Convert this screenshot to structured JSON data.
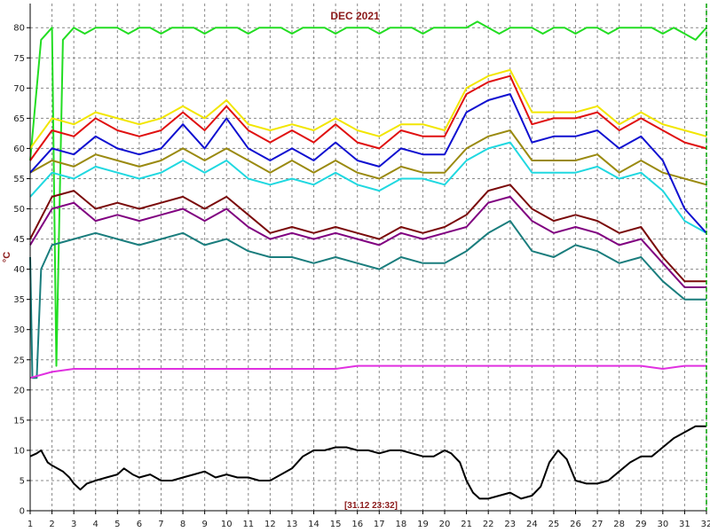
{
  "chart_data": {
    "type": "line",
    "title": "DEC 2021",
    "ylabel": "°C",
    "xlabel": "",
    "timestamp": "[31.12 23:32]",
    "x_ticks": [
      "1",
      "2",
      "3",
      "4",
      "5",
      "6",
      "7",
      "8",
      "9",
      "10",
      "11",
      "12",
      "13",
      "14",
      "15",
      "16",
      "17",
      "18",
      "19",
      "20",
      "21",
      "22",
      "23",
      "24",
      "25",
      "26",
      "27",
      "28",
      "29",
      "30",
      "31",
      "32"
    ],
    "y_ticks": [
      "0",
      "5",
      "10",
      "15",
      "20",
      "25",
      "30",
      "35",
      "40",
      "45",
      "50",
      "55",
      "60",
      "65",
      "70",
      "75",
      "80"
    ],
    "xlim": [
      1,
      32
    ],
    "ylim": [
      0,
      84
    ],
    "grid": true,
    "colors": {
      "green": "#22dd22",
      "yellow": "#f2e600",
      "red": "#e01010",
      "olive": "#9a8a10",
      "cyan": "#20d8e0",
      "blue": "#1010d0",
      "maroon": "#7a0a0a",
      "purple": "#800080",
      "teal": "#1a7d7d",
      "magenta": "#e030e0",
      "black": "#000000",
      "marker": "#00a000"
    },
    "series": [
      {
        "color": "green",
        "x": [
          1,
          1.5,
          2,
          2.2,
          2.5,
          3,
          3.5,
          4,
          4.5,
          5,
          5.5,
          6,
          6.5,
          7,
          7.5,
          8,
          8.5,
          9,
          9.5,
          10,
          10.5,
          11,
          11.5,
          12,
          12.5,
          13,
          13.5,
          14,
          14.5,
          15,
          15.5,
          16,
          16.5,
          17,
          17.5,
          18,
          18.5,
          19,
          19.5,
          20,
          20.5,
          21,
          21.5,
          22,
          22.5,
          23,
          23.5,
          24,
          24.5,
          25,
          25.5,
          26,
          26.5,
          27,
          27.5,
          28,
          28.5,
          29,
          29.5,
          30,
          30.5,
          31,
          31.5,
          32
        ],
        "y": [
          58,
          78,
          80,
          24,
          78,
          80,
          79,
          80,
          80,
          80,
          79,
          80,
          80,
          79,
          80,
          80,
          80,
          79,
          80,
          80,
          80,
          79,
          80,
          80,
          80,
          79,
          80,
          80,
          80,
          79,
          80,
          80,
          80,
          79,
          80,
          80,
          80,
          79,
          80,
          80,
          80,
          80,
          81,
          80,
          79,
          80,
          80,
          80,
          79,
          80,
          80,
          79,
          80,
          80,
          79,
          80,
          80,
          80,
          80,
          79,
          80,
          79,
          78,
          80
        ]
      },
      {
        "color": "yellow",
        "x": [
          1,
          2,
          3,
          4,
          5,
          6,
          7,
          8,
          9,
          10,
          11,
          12,
          13,
          14,
          15,
          16,
          17,
          18,
          19,
          20,
          21,
          22,
          23,
          24,
          25,
          26,
          27,
          28,
          29,
          30,
          31,
          32
        ],
        "y": [
          60,
          65,
          64,
          66,
          65,
          64,
          65,
          67,
          65,
          68,
          64,
          63,
          64,
          63,
          65,
          63,
          62,
          64,
          64,
          63,
          70,
          72,
          73,
          66,
          66,
          66,
          67,
          64,
          66,
          64,
          63,
          62
        ]
      },
      {
        "color": "red",
        "x": [
          1,
          2,
          3,
          4,
          5,
          6,
          7,
          8,
          9,
          10,
          11,
          12,
          13,
          14,
          15,
          16,
          17,
          18,
          19,
          20,
          21,
          22,
          23,
          24,
          25,
          26,
          27,
          28,
          29,
          30,
          31,
          32
        ],
        "y": [
          58,
          63,
          62,
          65,
          63,
          62,
          63,
          66,
          63,
          67,
          63,
          61,
          63,
          61,
          64,
          61,
          60,
          63,
          62,
          62,
          69,
          71,
          72,
          64,
          65,
          65,
          66,
          63,
          65,
          63,
          61,
          60
        ]
      },
      {
        "color": "olive",
        "x": [
          1,
          2,
          3,
          4,
          5,
          6,
          7,
          8,
          9,
          10,
          11,
          12,
          13,
          14,
          15,
          16,
          17,
          18,
          19,
          20,
          21,
          22,
          23,
          24,
          25,
          26,
          27,
          28,
          29,
          30,
          31,
          32
        ],
        "y": [
          56,
          58,
          57,
          59,
          58,
          57,
          58,
          60,
          58,
          60,
          58,
          56,
          58,
          56,
          58,
          56,
          55,
          57,
          56,
          56,
          60,
          62,
          63,
          58,
          58,
          58,
          59,
          56,
          58,
          56,
          55,
          54
        ]
      },
      {
        "color": "cyan",
        "x": [
          1,
          2,
          3,
          4,
          5,
          6,
          7,
          8,
          9,
          10,
          11,
          12,
          13,
          14,
          15,
          16,
          17,
          18,
          19,
          20,
          21,
          22,
          23,
          24,
          25,
          26,
          27,
          28,
          29,
          30,
          31,
          32
        ],
        "y": [
          52,
          56,
          55,
          57,
          56,
          55,
          56,
          58,
          56,
          58,
          55,
          54,
          55,
          54,
          56,
          54,
          53,
          55,
          55,
          54,
          58,
          60,
          61,
          56,
          56,
          56,
          57,
          55,
          56,
          53,
          48,
          46
        ]
      },
      {
        "color": "blue",
        "x": [
          1,
          2,
          3,
          4,
          5,
          6,
          7,
          8,
          9,
          10,
          11,
          12,
          13,
          14,
          15,
          16,
          17,
          18,
          19,
          20,
          21,
          22,
          23,
          24,
          25,
          26,
          27,
          28,
          29,
          30,
          31,
          32
        ],
        "y": [
          56,
          60,
          59,
          62,
          60,
          59,
          60,
          64,
          60,
          65,
          60,
          58,
          60,
          58,
          61,
          58,
          57,
          60,
          59,
          59,
          66,
          68,
          69,
          61,
          62,
          62,
          63,
          60,
          62,
          58,
          50,
          46
        ]
      },
      {
        "color": "maroon",
        "x": [
          1,
          2,
          3,
          4,
          5,
          6,
          7,
          8,
          9,
          10,
          11,
          12,
          13,
          14,
          15,
          16,
          17,
          18,
          19,
          20,
          21,
          22,
          23,
          24,
          25,
          26,
          27,
          28,
          29,
          30,
          31,
          32
        ],
        "y": [
          45,
          52,
          53,
          50,
          51,
          50,
          51,
          52,
          50,
          52,
          49,
          46,
          47,
          46,
          47,
          46,
          45,
          47,
          46,
          47,
          49,
          53,
          54,
          50,
          48,
          49,
          48,
          46,
          47,
          42,
          38,
          38
        ]
      },
      {
        "color": "purple",
        "x": [
          1,
          2,
          3,
          4,
          5,
          6,
          7,
          8,
          9,
          10,
          11,
          12,
          13,
          14,
          15,
          16,
          17,
          18,
          19,
          20,
          21,
          22,
          23,
          24,
          25,
          26,
          27,
          28,
          29,
          30,
          31,
          32
        ],
        "y": [
          44,
          50,
          51,
          48,
          49,
          48,
          49,
          50,
          48,
          50,
          47,
          45,
          46,
          45,
          46,
          45,
          44,
          46,
          45,
          46,
          47,
          51,
          52,
          48,
          46,
          47,
          46,
          44,
          45,
          41,
          37,
          37
        ]
      },
      {
        "color": "teal",
        "x": [
          1,
          1.1,
          1.3,
          1.5,
          2,
          3,
          4,
          5,
          6,
          7,
          8,
          9,
          10,
          11,
          12,
          13,
          14,
          15,
          16,
          17,
          18,
          19,
          20,
          21,
          22,
          23,
          24,
          25,
          26,
          27,
          28,
          29,
          30,
          31,
          32
        ],
        "y": [
          42,
          22,
          22,
          40,
          44,
          45,
          46,
          45,
          44,
          45,
          46,
          44,
          45,
          43,
          42,
          42,
          41,
          42,
          41,
          40,
          42,
          41,
          41,
          43,
          46,
          48,
          43,
          42,
          44,
          43,
          41,
          42,
          38,
          35,
          35
        ]
      },
      {
        "color": "magenta",
        "x": [
          1,
          2,
          3,
          4,
          5,
          6,
          7,
          8,
          9,
          10,
          11,
          12,
          13,
          14,
          15,
          16,
          17,
          18,
          19,
          20,
          21,
          22,
          23,
          24,
          25,
          26,
          27,
          28,
          29,
          30,
          31,
          32
        ],
        "y": [
          22,
          23,
          23.5,
          23.5,
          23.5,
          23.5,
          23.5,
          23.5,
          23.5,
          23.5,
          23.5,
          23.5,
          23.5,
          23.5,
          23.5,
          24,
          24,
          24,
          24,
          24,
          24,
          24,
          24,
          24,
          24,
          24,
          24,
          24,
          24,
          23.5,
          24,
          24
        ]
      },
      {
        "color": "black",
        "x": [
          1,
          1.3,
          1.5,
          1.8,
          2,
          2.5,
          2.8,
          3,
          3.3,
          3.6,
          4,
          4.5,
          5,
          5.3,
          5.7,
          6,
          6.5,
          7,
          7.5,
          8,
          8.5,
          9,
          9.5,
          10,
          10.5,
          11,
          11.5,
          12,
          12.5,
          13,
          13.5,
          14,
          14.5,
          15,
          15.5,
          16,
          16.5,
          17,
          17.5,
          18,
          18.5,
          19,
          19.5,
          20,
          20.3,
          20.7,
          21,
          21.3,
          21.6,
          22,
          22.5,
          23,
          23.5,
          24,
          24.4,
          24.8,
          25.2,
          25.6,
          26,
          26.5,
          27,
          27.5,
          28,
          28.5,
          29,
          29.5,
          30,
          30.5,
          31,
          31.5,
          32
        ],
        "y": [
          9,
          9.5,
          10,
          8,
          7.5,
          6.5,
          5.5,
          4.5,
          3.5,
          4.5,
          5,
          5.5,
          6,
          7,
          6,
          5.5,
          6,
          5,
          5,
          5.5,
          6,
          6.5,
          5.5,
          6,
          5.5,
          5.5,
          5,
          5,
          6,
          7,
          9,
          10,
          10,
          10.5,
          10.5,
          10,
          10,
          9.5,
          10,
          10,
          9.5,
          9,
          9,
          10,
          9.5,
          8,
          5,
          3,
          2,
          2,
          2.5,
          3,
          2,
          2.5,
          4,
          8,
          10,
          8.5,
          5,
          4.5,
          4.5,
          5,
          6.5,
          8,
          9,
          9,
          10.5,
          12,
          13,
          14,
          14
        ]
      }
    ]
  }
}
